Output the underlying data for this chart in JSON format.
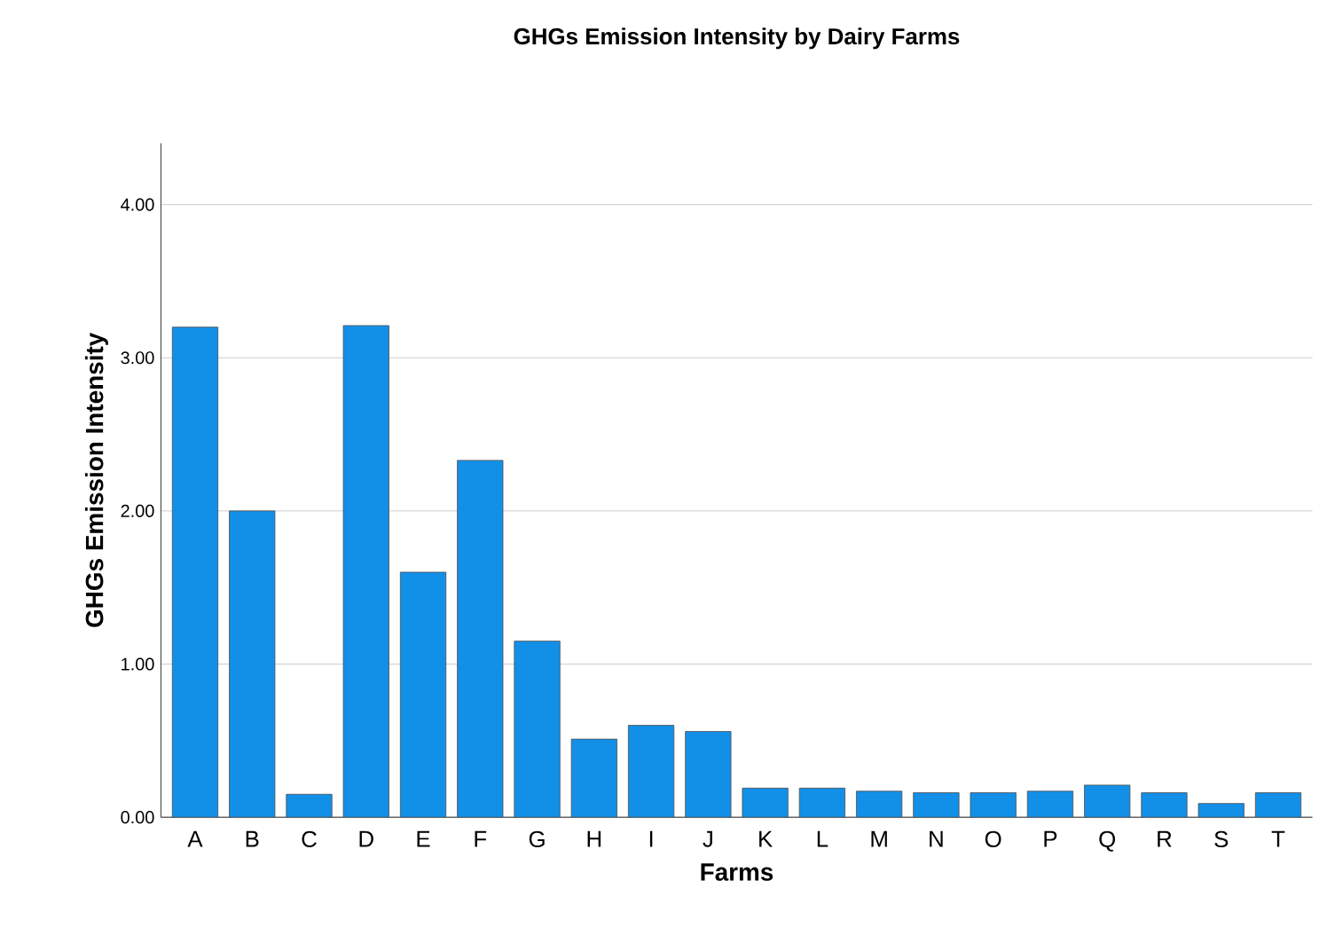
{
  "chart_data": {
    "type": "bar",
    "title": "GHGs Emission Intensity by Dairy Farms",
    "xlabel": "Farms",
    "ylabel": "GHGs Emission Intensity",
    "categories": [
      "A",
      "B",
      "C",
      "D",
      "E",
      "F",
      "G",
      "H",
      "I",
      "J",
      "K",
      "L",
      "M",
      "N",
      "O",
      "P",
      "Q",
      "R",
      "S",
      "T"
    ],
    "values": [
      3.2,
      2.0,
      0.15,
      3.21,
      1.6,
      2.33,
      1.15,
      0.51,
      0.6,
      0.56,
      0.19,
      0.19,
      0.17,
      0.16,
      0.16,
      0.17,
      0.21,
      0.16,
      0.09,
      0.16
    ],
    "color": "#1290e8",
    "ylim": [
      0,
      4.4
    ],
    "yticks": [
      {
        "value": 0,
        "label": "0.00"
      },
      {
        "value": 1,
        "label": "1.00"
      },
      {
        "value": 2,
        "label": "2.00"
      },
      {
        "value": 3,
        "label": "3.00"
      },
      {
        "value": 4,
        "label": "4.00"
      }
    ],
    "grid": "y"
  }
}
